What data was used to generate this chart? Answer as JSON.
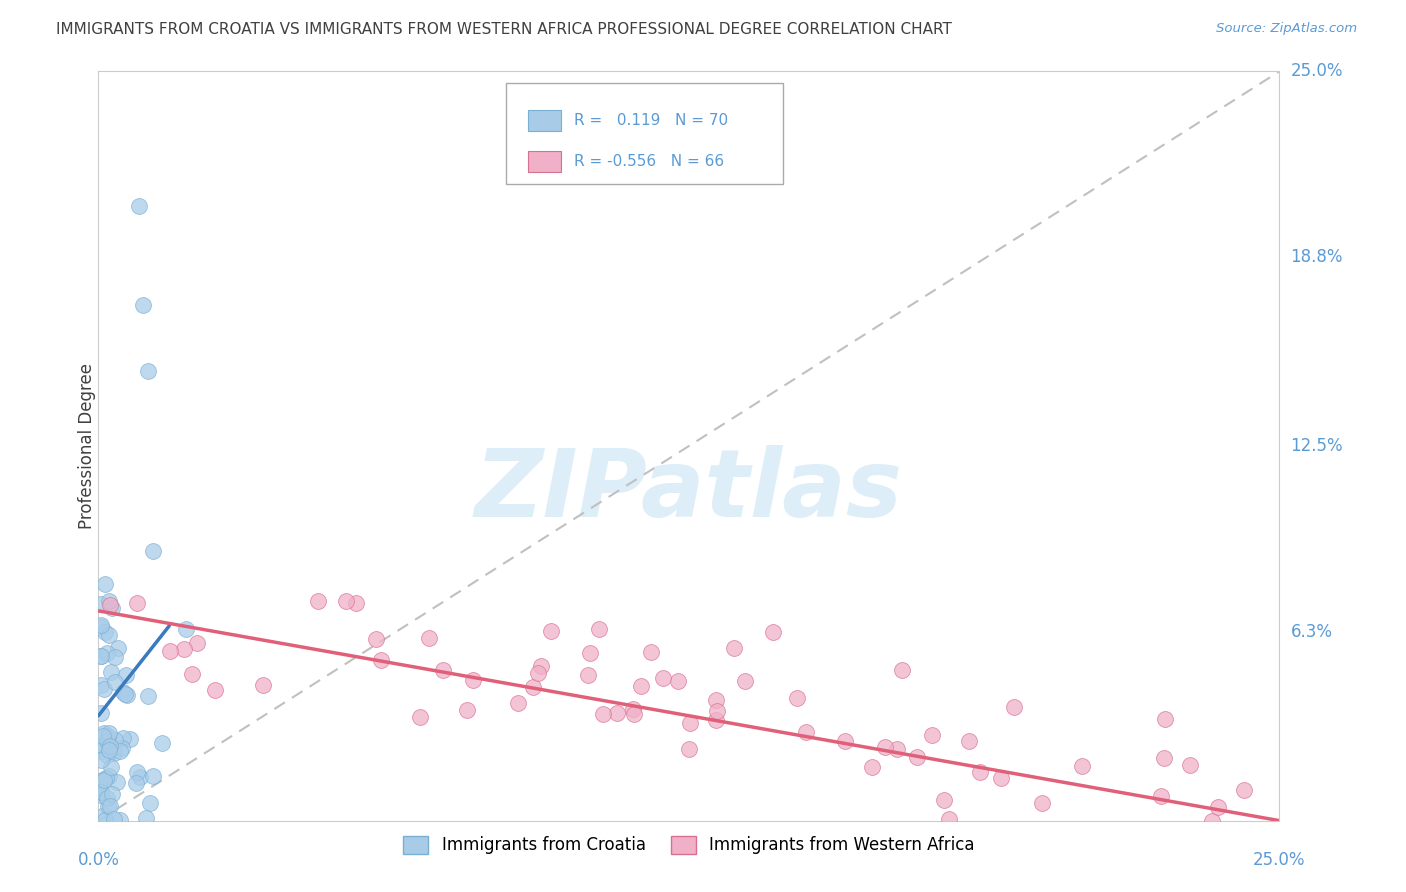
{
  "title": "IMMIGRANTS FROM CROATIA VS IMMIGRANTS FROM WESTERN AFRICA PROFESSIONAL DEGREE CORRELATION CHART",
  "source": "Source: ZipAtlas.com",
  "ylabel": "Professional Degree",
  "yticks_labels": [
    "25.0%",
    "18.8%",
    "12.5%",
    "6.3%"
  ],
  "ytick_vals": [
    25.0,
    18.8,
    12.5,
    6.3
  ],
  "xrange": [
    0,
    25
  ],
  "yrange": [
    0,
    25
  ],
  "color_croatia": "#a8cce8",
  "color_western_africa": "#f0b0c8",
  "color_trend_croatia": "#3a7abf",
  "color_trend_western_africa": "#e0607a",
  "watermark_color": "#ddeef8",
  "background_color": "#ffffff",
  "grid_color": "#d8d8d8",
  "tick_label_color": "#5b9bd5",
  "title_color": "#404040"
}
